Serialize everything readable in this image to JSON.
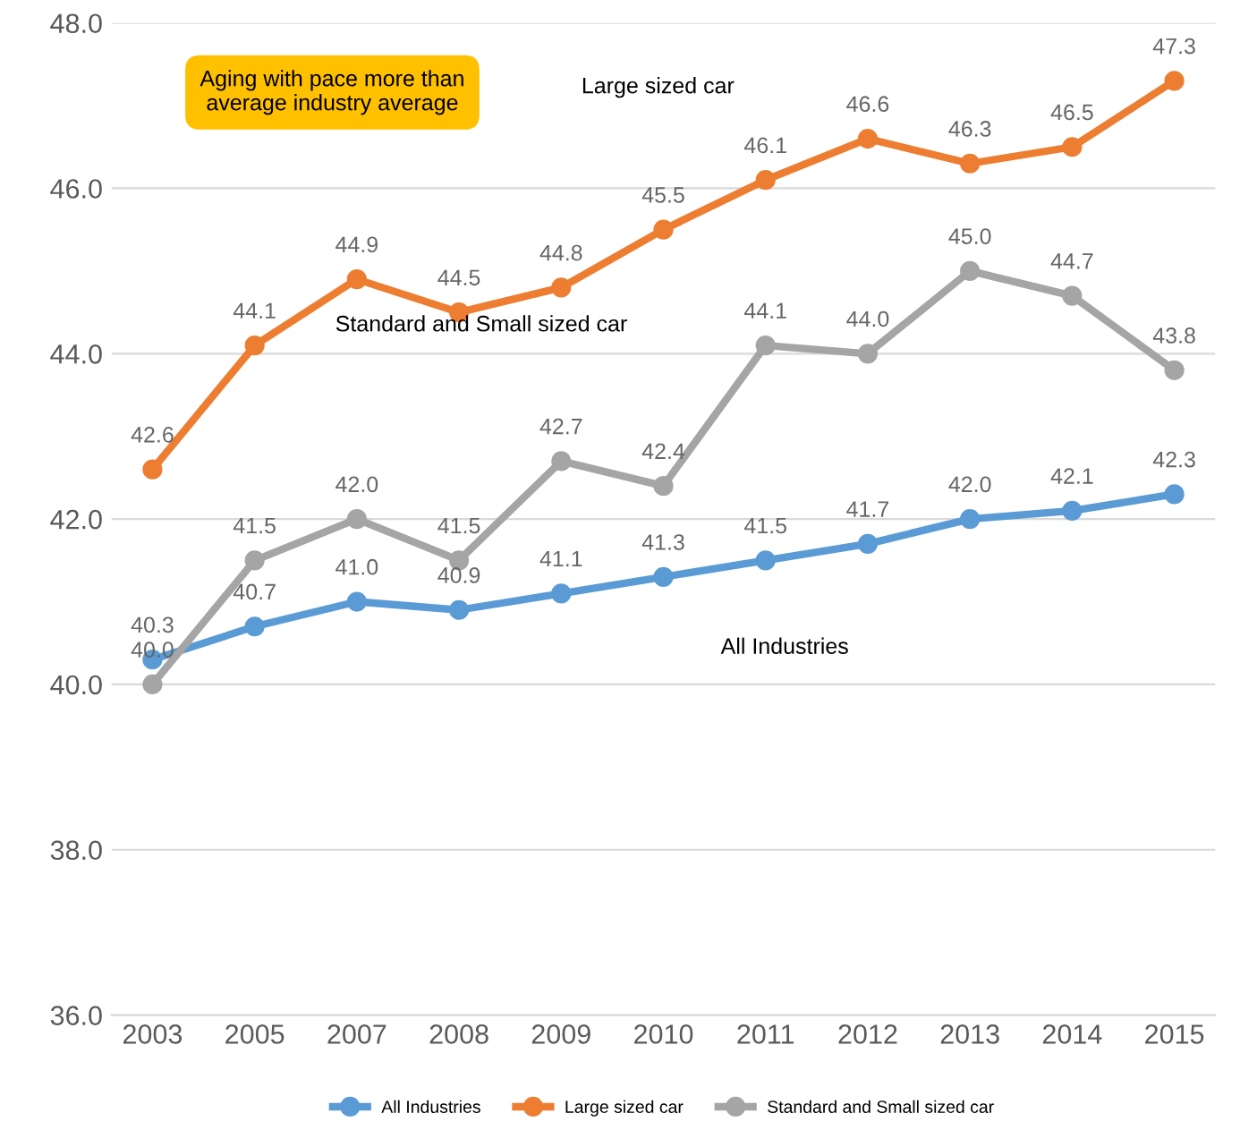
{
  "chart_data": {
    "type": "line",
    "categories": [
      "2003",
      "2005",
      "2007",
      "2008",
      "2009",
      "2010",
      "2011",
      "2012",
      "2013",
      "2014",
      "2015"
    ],
    "series": [
      {
        "name": "All Industries",
        "color": "#5b9bd5",
        "values": [
          40.3,
          40.7,
          41.0,
          40.9,
          41.1,
          41.3,
          41.5,
          41.7,
          42.0,
          42.1,
          42.3
        ],
        "value_labels": [
          "40.3",
          "40.7",
          "41.0",
          "40.9",
          "41.1",
          "41.3",
          "41.5",
          "41.7",
          "42.0",
          "42.1",
          "42.3"
        ]
      },
      {
        "name": "Large sized car",
        "color": "#ed7d31",
        "values": [
          42.6,
          44.1,
          44.9,
          44.5,
          44.8,
          45.5,
          46.1,
          46.6,
          46.3,
          46.5,
          47.3
        ],
        "value_labels": [
          "42.6",
          "44.1",
          "44.9",
          "44.5",
          "44.8",
          "45.5",
          "46.1",
          "46.6",
          "46.3",
          "46.5",
          "47.3"
        ]
      },
      {
        "name": "Standard and Small sized car",
        "color": "#a5a5a5",
        "values": [
          40.0,
          41.5,
          42.0,
          41.5,
          42.7,
          42.4,
          44.1,
          44.0,
          45.0,
          44.7,
          43.8
        ],
        "value_labels": [
          "40.0",
          "41.5",
          "42.0",
          "41.5",
          "42.7",
          "42.4",
          "44.1",
          "44.0",
          "45.0",
          "44.7",
          "43.8"
        ]
      }
    ],
    "ylim": [
      36,
      48
    ],
    "yticks": [
      {
        "value": 36,
        "label": "36.0"
      },
      {
        "value": 38,
        "label": "38.0"
      },
      {
        "value": 40,
        "label": "40.0"
      },
      {
        "value": 42,
        "label": "42.0"
      },
      {
        "value": 44,
        "label": "44.0"
      },
      {
        "value": 46,
        "label": "46.0"
      },
      {
        "value": 48,
        "label": "48.0"
      }
    ],
    "annotations": [
      "Aging with pace more than\naverage industry average",
      "Large sized car",
      "Standard and Small sized car",
      "All Industries"
    ],
    "grid": "y",
    "legend": "bottom",
    "marker": "circle",
    "line_style": "solid"
  }
}
